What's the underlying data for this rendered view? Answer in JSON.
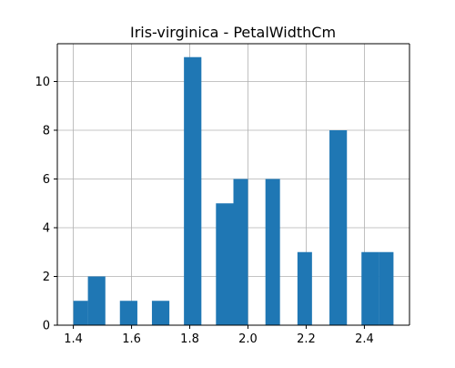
{
  "chart_data": {
    "type": "bar",
    "title": "Iris-virginica - PetalWidthCm",
    "xlabel": "",
    "ylabel": "",
    "bin_width": 0.11,
    "bins": [
      {
        "x0": 1.4,
        "x1": 1.45,
        "count": 1
      },
      {
        "x0": 1.45,
        "x1": 1.51,
        "count": 2
      },
      {
        "x0": 1.56,
        "x1": 1.62,
        "count": 1
      },
      {
        "x0": 1.67,
        "x1": 1.73,
        "count": 1
      },
      {
        "x0": 1.78,
        "x1": 1.84,
        "count": 11
      },
      {
        "x0": 1.89,
        "x1": 1.95,
        "count": 5
      },
      {
        "x0": 1.95,
        "x1": 2.0,
        "count": 6
      },
      {
        "x0": 2.06,
        "x1": 2.11,
        "count": 6
      },
      {
        "x0": 2.17,
        "x1": 2.22,
        "count": 3
      },
      {
        "x0": 2.28,
        "x1": 2.34,
        "count": 8
      },
      {
        "x0": 2.39,
        "x1": 2.45,
        "count": 3
      },
      {
        "x0": 2.45,
        "x1": 2.5,
        "count": 3
      }
    ],
    "xlim": [
      1.345,
      2.555
    ],
    "ylim": [
      0,
      11.55
    ],
    "x_ticks": [
      1.4,
      1.6,
      1.8,
      2.0,
      2.2,
      2.4
    ],
    "x_tick_labels": [
      "1.4",
      "1.6",
      "1.8",
      "2.0",
      "2.2",
      "2.4"
    ],
    "y_ticks": [
      0,
      2,
      4,
      6,
      8,
      10
    ],
    "y_tick_labels": [
      "0",
      "2",
      "4",
      "6",
      "8",
      "10"
    ],
    "grid": true,
    "legend": "none",
    "bar_color": "#1f77b4",
    "grid_color": "#b0b0b0"
  }
}
